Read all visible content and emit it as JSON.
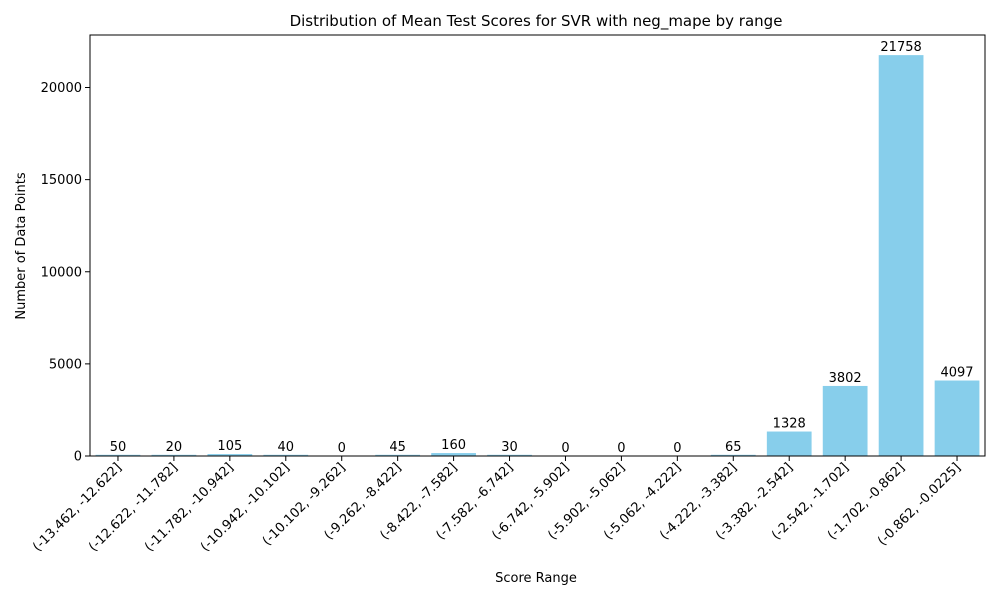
{
  "chart_data": {
    "type": "bar",
    "title": "Distribution of Mean Test Scores for SVR with neg_mape by range",
    "xlabel": "Score Range",
    "ylabel": "Number of Data Points",
    "categories": [
      "(-13.462, -12.622]",
      "(-12.622, -11.782]",
      "(-11.782, -10.942]",
      "(-10.942, -10.102]",
      "(-10.102, -9.262]",
      "(-9.262, -8.422]",
      "(-8.422, -7.582]",
      "(-7.582, -6.742]",
      "(-6.742, -5.902]",
      "(-5.902, -5.062]",
      "(-5.062, -4.222]",
      "(-4.222, -3.382]",
      "(-3.382, -2.542]",
      "(-2.542, -1.702]",
      "(-1.702, -0.862]",
      "(-0.862, -0.0225]"
    ],
    "values": [
      50,
      20,
      105,
      40,
      0,
      45,
      160,
      30,
      0,
      0,
      0,
      65,
      1328,
      3802,
      21758,
      4097
    ],
    "data_labels": [
      "50",
      "20",
      "105",
      "40",
      "0",
      "45",
      "160",
      "30",
      "0",
      "0",
      "0",
      "65",
      "1328",
      "3802",
      "21758",
      "4097"
    ],
    "ylim": [
      0,
      22850
    ],
    "yticks": [
      0,
      5000,
      10000,
      15000,
      20000
    ],
    "ytick_labels": [
      "0",
      "5000",
      "10000",
      "15000",
      "20000"
    ],
    "grid": false,
    "bar_color": "#87ceeb"
  }
}
